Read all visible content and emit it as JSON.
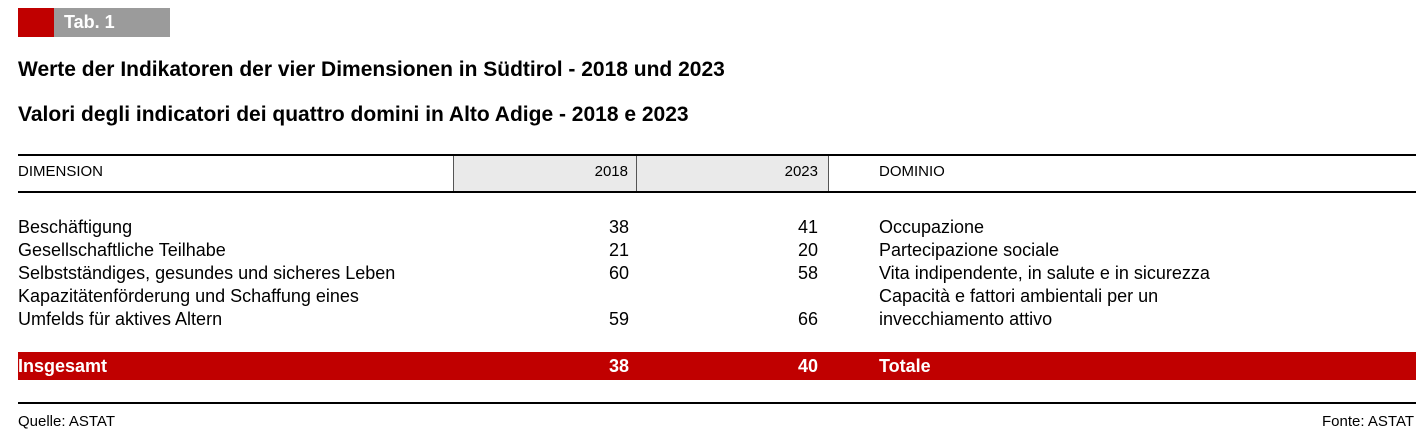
{
  "tag": {
    "label": "Tab. 1",
    "accent_color": "#c00000",
    "label_bg": "#9b9b9b"
  },
  "title_de": "Werte der Indikatoren der vier Dimensionen in Südtirol - 2018 und 2023",
  "title_it": "Valori degli indicatori dei quattro domini in Alto Adige - 2018 e 2023",
  "header": {
    "dimension": "DIMENSION",
    "y2018": "2018",
    "y2023": "2023",
    "domain": "DOMINIO"
  },
  "rows": [
    {
      "de": "Beschäftigung",
      "v2018": "38",
      "v2023": "41",
      "it": "Occupazione"
    },
    {
      "de": "Gesellschaftliche Teilhabe",
      "v2018": "21",
      "v2023": "20",
      "it": "Partecipazione sociale"
    },
    {
      "de": "Selbstständiges, gesundes und sicheres Leben",
      "v2018": "60",
      "v2023": "58",
      "it": "Vita indipendente, in salute e in sicurezza"
    },
    {
      "de_line1": "Kapazitätenförderung und Schaffung eines",
      "it_line1": "Capacità e fattori ambientali per un",
      "de_line2": "Umfelds für aktives Altern",
      "v2018": "59",
      "v2023": "66",
      "it_line2": "invecchiamento attivo"
    }
  ],
  "total": {
    "de": "Insgesamt",
    "v2018": "38",
    "v2023": "40",
    "it": "Totale",
    "color": "#c00000"
  },
  "source": {
    "de": "Quelle: ASTAT",
    "it": "Fonte: ASTAT"
  }
}
